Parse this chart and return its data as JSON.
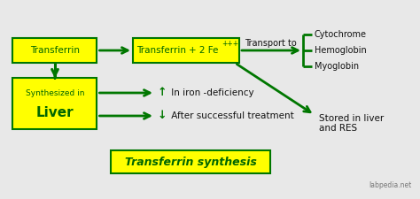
{
  "bg_color": "#e8e8e8",
  "box_fill": "#ffff00",
  "box_edge": "#007700",
  "arrow_color": "#007700",
  "text_color_box": "#006600",
  "text_color_plain": "#111111",
  "title_text": "Transferrin synthesis",
  "watermark": "labpedia.net",
  "box1_label": "Transferrin",
  "box2_main": "Transferrin",
  "box2_plus2fe": "+ 2 Fe",
  "box2_super": "+++",
  "box3_top": "Synthesized in",
  "box3_bot": "Liver",
  "transport_label": "Transport to",
  "cytochrome": "Cytochrome",
  "hemoglobin": "Hemoglobin",
  "myoglobin": "Myoglobin",
  "iron_def_arrow": "↑",
  "iron_def_text": " In iron -deficiency",
  "after_treat_arrow": "↓",
  "after_treat_text": " After successful treatment",
  "stored_line1": "Stored in liver",
  "stored_line2": "and RES"
}
